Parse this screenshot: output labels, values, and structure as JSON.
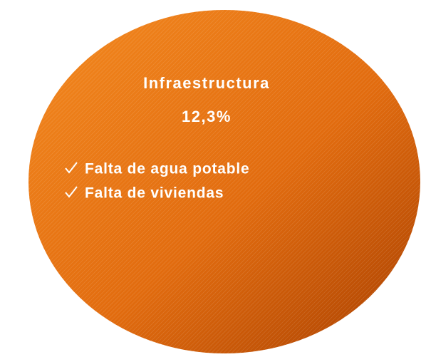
{
  "title": "Infraestructura",
  "value": "12,3%",
  "items": [
    "Falta de agua potable",
    "Falta de viviendas"
  ]
}
